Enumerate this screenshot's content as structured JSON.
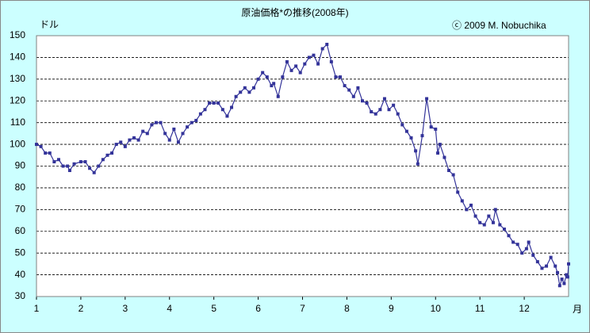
{
  "chart_data": {
    "type": "line",
    "title": "原油価格*の推移(2008年)",
    "annotation": "ⓒ 2009 M. Nobuchika",
    "y_label": "ドル",
    "x_label": "月",
    "color": "#333399",
    "grid": true,
    "xlim": [
      1,
      13
    ],
    "xticks": [
      1,
      2,
      3,
      4,
      5,
      6,
      7,
      8,
      9,
      10,
      11,
      12
    ],
    "ylim": [
      30,
      150
    ],
    "yticks": [
      30,
      40,
      50,
      60,
      70,
      80,
      90,
      100,
      110,
      120,
      130,
      140,
      150
    ],
    "x": [
      1.0,
      1.1,
      1.2,
      1.3,
      1.4,
      1.5,
      1.6,
      1.7,
      1.75,
      1.85,
      2.0,
      2.1,
      2.2,
      2.3,
      2.4,
      2.5,
      2.6,
      2.7,
      2.8,
      2.9,
      3.0,
      3.1,
      3.2,
      3.3,
      3.4,
      3.5,
      3.6,
      3.7,
      3.8,
      3.9,
      4.0,
      4.1,
      4.2,
      4.3,
      4.4,
      4.5,
      4.6,
      4.7,
      4.8,
      4.9,
      5.0,
      5.1,
      5.2,
      5.3,
      5.4,
      5.5,
      5.6,
      5.7,
      5.8,
      5.9,
      6.0,
      6.1,
      6.2,
      6.3,
      6.35,
      6.45,
      6.55,
      6.65,
      6.75,
      6.85,
      6.95,
      7.05,
      7.15,
      7.25,
      7.35,
      7.45,
      7.55,
      7.65,
      7.75,
      7.85,
      7.95,
      8.05,
      8.15,
      8.25,
      8.35,
      8.45,
      8.55,
      8.65,
      8.75,
      8.85,
      8.95,
      9.05,
      9.15,
      9.25,
      9.35,
      9.45,
      9.55,
      9.6,
      9.7,
      9.8,
      9.9,
      10.0,
      10.05,
      10.1,
      10.2,
      10.3,
      10.4,
      10.5,
      10.6,
      10.7,
      10.8,
      10.9,
      11.0,
      11.1,
      11.2,
      11.3,
      11.35,
      11.45,
      11.55,
      11.65,
      11.75,
      11.85,
      11.95,
      12.05,
      12.1,
      12.2,
      12.3,
      12.4,
      12.5,
      12.6,
      12.7,
      12.75,
      12.8,
      12.85,
      12.9,
      12.95,
      12.98,
      13.0
    ],
    "values": [
      100,
      99,
      96,
      96,
      92,
      93,
      90,
      90,
      88,
      91,
      92,
      92,
      89,
      87,
      90,
      93,
      95,
      96,
      100,
      101,
      99,
      102,
      103,
      102,
      106,
      105,
      109,
      110,
      110,
      105,
      102,
      107,
      101,
      105,
      108,
      110,
      111,
      114,
      116,
      119,
      119,
      119,
      116,
      113,
      117,
      122,
      124,
      126,
      124,
      126,
      130,
      133,
      131,
      127,
      128,
      122,
      131,
      138,
      134,
      136,
      133,
      137,
      140,
      141,
      137,
      144,
      146,
      138,
      131,
      131,
      127,
      125,
      122,
      126,
      120,
      119,
      115,
      114,
      116,
      121,
      116,
      118,
      114,
      109,
      106,
      103,
      97,
      91,
      104,
      121,
      108,
      107,
      96,
      100,
      94,
      88,
      86,
      78,
      74,
      70,
      72,
      67,
      64,
      63,
      67,
      64,
      70,
      63,
      61,
      58,
      55,
      54,
      50,
      52,
      55,
      49,
      46,
      43,
      44,
      48,
      44,
      41,
      35,
      38,
      36,
      40,
      39,
      45
    ]
  }
}
